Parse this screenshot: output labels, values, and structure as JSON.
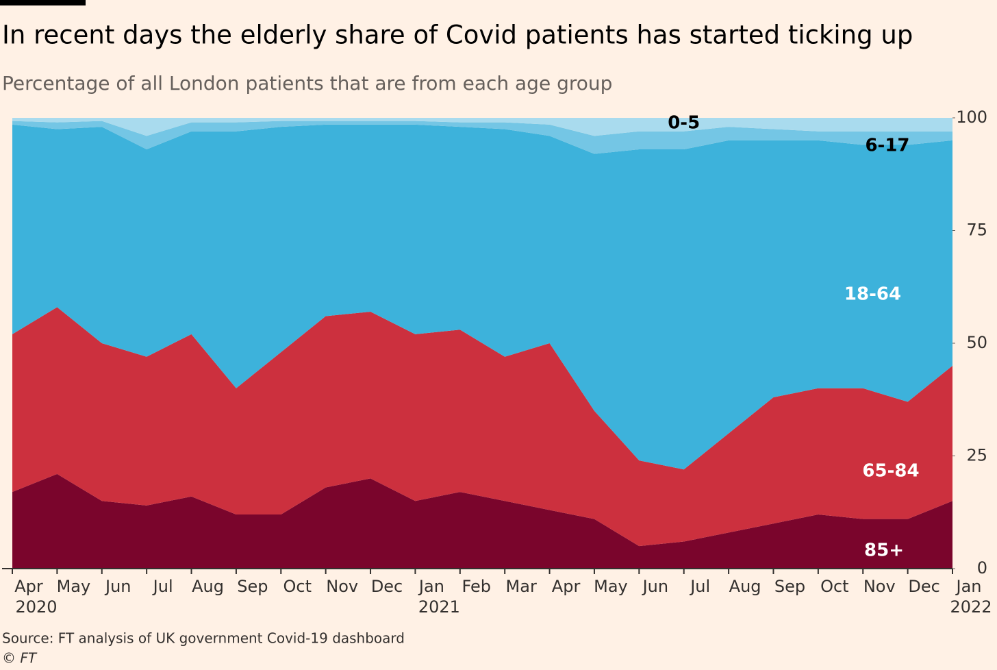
{
  "chart_data": {
    "type": "stacked_area",
    "title": "In recent days the elderly share of Covid patients has started ticking up",
    "subtitle": "Percentage of all London patients that are from each age group",
    "source": "Source: FT analysis of UK government Covid-19 dashboard",
    "credit": "© FT",
    "x": [
      "2020-04",
      "2020-05",
      "2020-06",
      "2020-07",
      "2020-08",
      "2020-09",
      "2020-10",
      "2020-11",
      "2020-12",
      "2021-01",
      "2021-02",
      "2021-03",
      "2021-04",
      "2021-05",
      "2021-06",
      "2021-07",
      "2021-08",
      "2021-09",
      "2021-10",
      "2021-11",
      "2021-12",
      "2022-01"
    ],
    "series": [
      {
        "name": "85+",
        "color": "#7a052c",
        "values": [
          17,
          21,
          15,
          14,
          16,
          12,
          12,
          18,
          20,
          15,
          17,
          15,
          13,
          11,
          5,
          6,
          8,
          10,
          12,
          11,
          11,
          15
        ]
      },
      {
        "name": "65-84",
        "color": "#cc303e",
        "values": [
          35,
          37,
          35,
          33,
          36,
          28,
          36,
          38,
          37,
          37,
          36,
          32,
          37,
          24,
          19,
          16,
          22,
          28,
          28,
          29,
          26,
          30
        ]
      },
      {
        "name": "18-64",
        "color": "#3db2db",
        "values": [
          46.5,
          39.5,
          48,
          46,
          45,
          57,
          50,
          42.5,
          41.5,
          46.5,
          45,
          50.5,
          46,
          57,
          69,
          71,
          65,
          57,
          55,
          54,
          57,
          50
        ]
      },
      {
        "name": "6-17",
        "color": "#74c6e5",
        "values": [
          0.8,
          1.5,
          1.3,
          3,
          2,
          2,
          1.3,
          0.8,
          0.8,
          0.8,
          1,
          1.5,
          2.5,
          4,
          4,
          4,
          3,
          2.5,
          2,
          3,
          3,
          2
        ]
      },
      {
        "name": "0-5",
        "color": "#a9dbee",
        "values": [
          0.7,
          1,
          0.7,
          4,
          1,
          1,
          0.7,
          0.7,
          0.7,
          0.7,
          1,
          1,
          1.5,
          4,
          3,
          3,
          2,
          2.5,
          3,
          3,
          3,
          3
        ]
      }
    ],
    "xlim": [
      "2020-04",
      "2022-01"
    ],
    "xticks": [
      {
        "value": "2020-04",
        "label": "Apr"
      },
      {
        "value": "2020-05",
        "label": "May"
      },
      {
        "value": "2020-06",
        "label": "Jun"
      },
      {
        "value": "2020-07",
        "label": "Jul"
      },
      {
        "value": "2020-08",
        "label": "Aug"
      },
      {
        "value": "2020-09",
        "label": "Sep"
      },
      {
        "value": "2020-10",
        "label": "Oct"
      },
      {
        "value": "2020-11",
        "label": "Nov"
      },
      {
        "value": "2020-12",
        "label": "Dec"
      },
      {
        "value": "2021-01",
        "label": "Jan"
      },
      {
        "value": "2021-02",
        "label": "Feb"
      },
      {
        "value": "2021-03",
        "label": "Mar"
      },
      {
        "value": "2021-04",
        "label": "Apr"
      },
      {
        "value": "2021-05",
        "label": "May"
      },
      {
        "value": "2021-06",
        "label": "Jun"
      },
      {
        "value": "2021-07",
        "label": "Jul"
      },
      {
        "value": "2021-08",
        "label": "Aug"
      },
      {
        "value": "2021-09",
        "label": "Sep"
      },
      {
        "value": "2021-10",
        "label": "Oct"
      },
      {
        "value": "2021-11",
        "label": "Nov"
      },
      {
        "value": "2021-12",
        "label": "Dec"
      },
      {
        "value": "2022-01",
        "label": "Jan"
      }
    ],
    "xtick_years": [
      {
        "value": "2020-04",
        "label": "2020"
      },
      {
        "value": "2021-01",
        "label": "2021"
      },
      {
        "value": "2022-01",
        "label": "2022"
      }
    ],
    "ylim": [
      0,
      100
    ],
    "yticks": [
      0,
      25,
      50,
      75,
      100
    ]
  }
}
